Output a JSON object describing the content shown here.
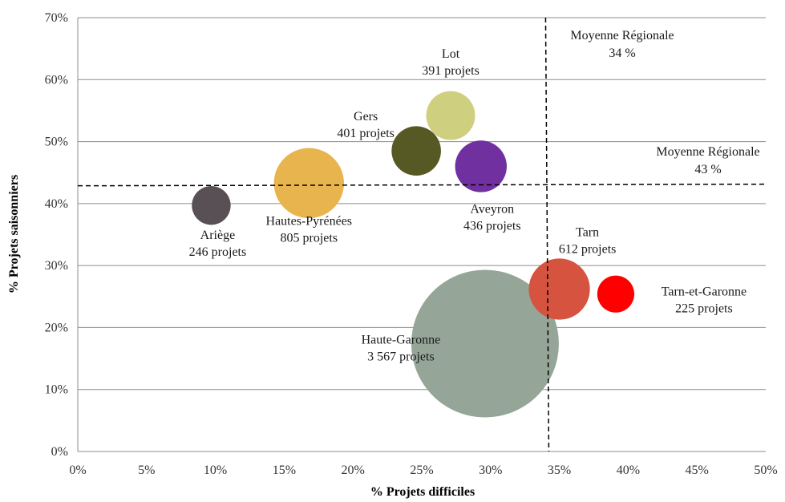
{
  "chart_data": {
    "type": "bubble",
    "xlabel": "% Projets difficiles",
    "ylabel": "% Projets saisonniers",
    "xlim": [
      0,
      50
    ],
    "ylim": [
      0,
      70
    ],
    "x_ticks": [
      "0%",
      "5%",
      "10%",
      "15%",
      "20%",
      "25%",
      "30%",
      "35%",
      "40%",
      "45%",
      "50%"
    ],
    "y_ticks": [
      "0%",
      "10%",
      "20%",
      "30%",
      "40%",
      "50%",
      "60%",
      "70%"
    ],
    "grid": "horizontal",
    "points": [
      {
        "name": "Haute-Garonne",
        "x": 29.6,
        "y": 17.4,
        "size": 3567,
        "size_label": "3 567 projets",
        "color": "#95a598"
      },
      {
        "name": "Hautes-Pyrénées",
        "x": 16.8,
        "y": 43.3,
        "size": 805,
        "size_label": "805 projets",
        "color": "#e8b44e"
      },
      {
        "name": "Tarn",
        "x": 35.0,
        "y": 26.2,
        "size": 612,
        "size_label": "612 projets",
        "color": "#d5533f"
      },
      {
        "name": "Aveyron",
        "x": 29.3,
        "y": 46.0,
        "size": 436,
        "size_label": "436 projets",
        "color": "#7030a0"
      },
      {
        "name": "Gers",
        "x": 24.6,
        "y": 48.5,
        "size": 401,
        "size_label": "401 projets",
        "color": "#575924"
      },
      {
        "name": "Lot",
        "x": 27.1,
        "y": 54.2,
        "size": 391,
        "size_label": "391 projets",
        "color": "#cfcf80"
      },
      {
        "name": "Ariège",
        "x": 9.7,
        "y": 39.7,
        "size": 246,
        "size_label": "246 projets",
        "color": "#595055"
      },
      {
        "name": "Tarn-et-Garonne",
        "x": 39.1,
        "y": 25.4,
        "size": 225,
        "size_label": "225 projets",
        "color": "#ff0000"
      }
    ],
    "reference_lines": [
      {
        "axis": "x",
        "value": 34,
        "label": "Moyenne Régionale",
        "value_label": "34 %"
      },
      {
        "axis": "y",
        "value": 43,
        "label": "Moyenne Régionale",
        "value_label": "43 %"
      }
    ]
  }
}
